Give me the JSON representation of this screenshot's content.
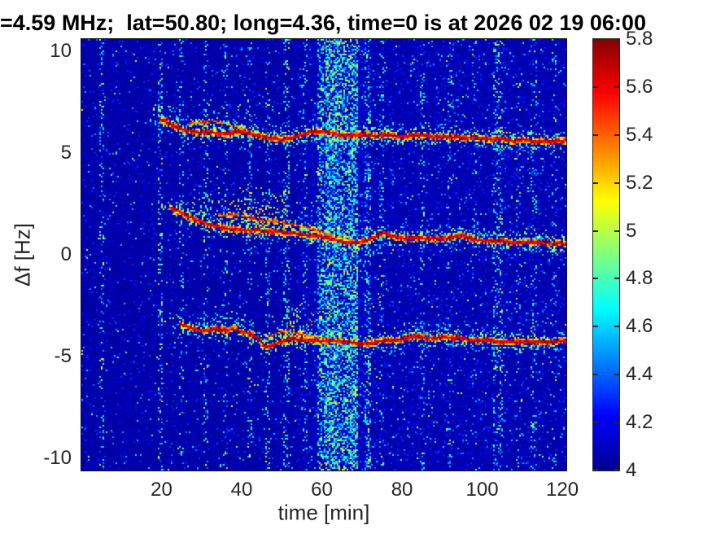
{
  "colors": {
    "background": "#ffffff",
    "title_color": "#000000",
    "axis_text_color": "#262626",
    "axis_line_color": "#111111"
  },
  "chart_data": {
    "type": "heatmap",
    "title": "=4.59 MHz;  lat=50.80; long=4.36, time=0 is at 2026 02 19 06:00",
    "xlabel": "time [min]",
    "ylabel": "Δf [Hz]",
    "xlim": [
      0,
      121
    ],
    "ylim": [
      -10.6,
      10.6
    ],
    "xticks": {
      "values": [
        20,
        40,
        60,
        80,
        100,
        120
      ],
      "labels": [
        "20",
        "40",
        "60",
        "80",
        "100",
        "120"
      ]
    },
    "yticks": {
      "values": [
        10,
        5,
        0,
        -5,
        -10
      ],
      "labels": [
        "10",
        "5",
        "0",
        "-5",
        "-10"
      ]
    },
    "grid": false,
    "legend": null,
    "colorbar": {
      "position": "right",
      "min": 4,
      "max": 5.8,
      "tick_values": [
        5.8,
        5.6,
        5.4,
        5.2,
        5,
        4.8,
        4.6,
        4.4,
        4.2,
        4
      ],
      "tick_labels": [
        "5.8",
        "5.6",
        "5.4",
        "5.2",
        "5",
        "4.8",
        "4.6",
        "4.4",
        "4.2",
        "4"
      ]
    },
    "colormap": {
      "name": "jet",
      "positions": [
        0,
        0.125,
        0.375,
        0.625,
        0.875,
        1
      ],
      "colors": [
        "#000090",
        "#0000ff",
        "#00ffff",
        "#ffff00",
        "#ff0000",
        "#870000"
      ]
    },
    "noise": {
      "seed": 20260219,
      "base": 4.03,
      "boosts": [
        {
          "t0": 54,
          "t1": 121,
          "mult": 1.9
        },
        {
          "t0": 58,
          "t1": 72,
          "mult": 1.5
        }
      ]
    },
    "stripes": [
      {
        "t": 5,
        "w": 1.2,
        "s": 0.22
      },
      {
        "t": 19.5,
        "w": 1.2,
        "s": 0.28
      },
      {
        "t": 25,
        "w": 1.0,
        "s": 0.15
      },
      {
        "t": 31,
        "w": 1.4,
        "s": 0.2
      },
      {
        "t": 36,
        "w": 1.2,
        "s": 0.15
      },
      {
        "t": 42,
        "w": 1.4,
        "s": 0.18
      },
      {
        "t": 46.5,
        "w": 1.4,
        "s": 0.22
      },
      {
        "t": 51,
        "w": 1.6,
        "s": 0.25
      },
      {
        "t": 56,
        "w": 1.2,
        "s": 0.18
      },
      {
        "t": 60,
        "w": 2.2,
        "s": 0.5
      },
      {
        "t": 62.5,
        "w": 3.2,
        "s": 0.85
      },
      {
        "t": 65.5,
        "w": 2.6,
        "s": 0.62
      },
      {
        "t": 68,
        "w": 2.2,
        "s": 0.8
      },
      {
        "t": 71.5,
        "w": 1.6,
        "s": 0.4
      },
      {
        "t": 75,
        "w": 1.2,
        "s": 0.15
      },
      {
        "t": 85,
        "w": 1.4,
        "s": 0.18
      },
      {
        "t": 92,
        "w": 1.2,
        "s": 0.15
      },
      {
        "t": 98,
        "w": 1.0,
        "s": 0.12
      },
      {
        "t": 104,
        "w": 2.4,
        "s": 0.28
      },
      {
        "t": 109,
        "w": 1.2,
        "s": 0.12
      },
      {
        "t": 113,
        "w": 1.6,
        "s": 0.18
      },
      {
        "t": 118,
        "w": 1.0,
        "s": 0.1
      }
    ],
    "traces": [
      {
        "name": "upper-doppler-trace",
        "points": [
          [
            19.5,
            6.68
          ],
          [
            21,
            6.55
          ],
          [
            22.5,
            6.4
          ],
          [
            24,
            6.28
          ],
          [
            26,
            6.12
          ],
          [
            28,
            6.02
          ],
          [
            30,
            5.98
          ],
          [
            32,
            6.05
          ],
          [
            34,
            5.98
          ],
          [
            36,
            5.92
          ],
          [
            38,
            6.0
          ],
          [
            40,
            6.05
          ],
          [
            42,
            5.95
          ],
          [
            44,
            5.85
          ],
          [
            46,
            5.78
          ],
          [
            48,
            5.7
          ],
          [
            50,
            5.65
          ],
          [
            52,
            5.7
          ],
          [
            54,
            5.85
          ],
          [
            56,
            5.98
          ],
          [
            58,
            6.04
          ],
          [
            60,
            6.05
          ],
          [
            62,
            6.0
          ],
          [
            64,
            5.9
          ],
          [
            66,
            5.85
          ],
          [
            68,
            5.88
          ],
          [
            70,
            5.92
          ],
          [
            72,
            5.88
          ],
          [
            74,
            5.84
          ],
          [
            76,
            5.9
          ],
          [
            78,
            5.84
          ],
          [
            80,
            5.78
          ],
          [
            82,
            5.84
          ],
          [
            84,
            5.9
          ],
          [
            86,
            5.84
          ],
          [
            88,
            5.78
          ],
          [
            90,
            5.83
          ],
          [
            92,
            5.76
          ],
          [
            94,
            5.8
          ],
          [
            96,
            5.72
          ],
          [
            98,
            5.77
          ],
          [
            100,
            5.7
          ],
          [
            102,
            5.66
          ],
          [
            104,
            5.72
          ],
          [
            106,
            5.66
          ],
          [
            108,
            5.6
          ],
          [
            110,
            5.67
          ],
          [
            112,
            5.6
          ],
          [
            114,
            5.56
          ],
          [
            116,
            5.6
          ],
          [
            118,
            5.56
          ],
          [
            120,
            5.6
          ],
          [
            121,
            5.62
          ]
        ]
      },
      {
        "name": "middle-doppler-trace",
        "points": [
          [
            22,
            2.35
          ],
          [
            24,
            2.15
          ],
          [
            26,
            1.95
          ],
          [
            28,
            1.76
          ],
          [
            30,
            1.6
          ],
          [
            32,
            1.46
          ],
          [
            34,
            1.38
          ],
          [
            36,
            1.31
          ],
          [
            38,
            1.28
          ],
          [
            40,
            1.22
          ],
          [
            42,
            1.18
          ],
          [
            44,
            1.22
          ],
          [
            46,
            1.16
          ],
          [
            48,
            1.12
          ],
          [
            50,
            1.1
          ],
          [
            52,
            1.07
          ],
          [
            54,
            1.03
          ],
          [
            56,
            0.98
          ],
          [
            58,
            0.93
          ],
          [
            60,
            0.87
          ],
          [
            62,
            0.8
          ],
          [
            64,
            0.72
          ],
          [
            66,
            0.63
          ],
          [
            68,
            0.6
          ],
          [
            70,
            0.66
          ],
          [
            72,
            0.73
          ],
          [
            74,
            0.95
          ],
          [
            75.5,
            1.08
          ],
          [
            77,
            0.93
          ],
          [
            79,
            0.84
          ],
          [
            81,
            0.78
          ],
          [
            83,
            0.8
          ],
          [
            85,
            0.83
          ],
          [
            87,
            0.8
          ],
          [
            89,
            0.78
          ],
          [
            91,
            0.82
          ],
          [
            93,
            0.9
          ],
          [
            95,
            0.95
          ],
          [
            97,
            0.8
          ],
          [
            99,
            0.72
          ],
          [
            101,
            0.68
          ],
          [
            103,
            0.66
          ],
          [
            105,
            0.65
          ],
          [
            107,
            0.62
          ],
          [
            109,
            0.6
          ],
          [
            111,
            0.63
          ],
          [
            113,
            0.62
          ],
          [
            115,
            0.58
          ],
          [
            117,
            0.55
          ],
          [
            119,
            0.56
          ],
          [
            121,
            0.55
          ]
        ]
      },
      {
        "name": "lower-doppler-trace",
        "points": [
          [
            24.5,
            -3.4
          ],
          [
            26,
            -3.5
          ],
          [
            28,
            -3.62
          ],
          [
            30,
            -3.74
          ],
          [
            32,
            -3.7
          ],
          [
            34,
            -3.62
          ],
          [
            36,
            -3.72
          ],
          [
            38,
            -3.68
          ],
          [
            40,
            -3.76
          ],
          [
            42,
            -3.86
          ],
          [
            44,
            -4.12
          ],
          [
            45.5,
            -4.45
          ],
          [
            47,
            -4.55
          ],
          [
            48.5,
            -4.4
          ],
          [
            50,
            -4.26
          ],
          [
            52,
            -4.12
          ],
          [
            54,
            -4.16
          ],
          [
            56,
            -4.2
          ],
          [
            58,
            -4.22
          ],
          [
            60,
            -4.25
          ],
          [
            62,
            -4.2
          ],
          [
            64,
            -4.22
          ],
          [
            66,
            -4.28
          ],
          [
            68,
            -4.32
          ],
          [
            70,
            -4.38
          ],
          [
            72,
            -4.35
          ],
          [
            74,
            -4.28
          ],
          [
            76,
            -4.2
          ],
          [
            78,
            -4.22
          ],
          [
            80,
            -4.15
          ],
          [
            82,
            -4.05
          ],
          [
            84,
            -4.0
          ],
          [
            86,
            -4.08
          ],
          [
            88,
            -4.12
          ],
          [
            90,
            -4.05
          ],
          [
            92,
            -4.1
          ],
          [
            94,
            -4.06
          ],
          [
            96,
            -4.15
          ],
          [
            98,
            -4.2
          ],
          [
            100,
            -4.22
          ],
          [
            102,
            -4.18
          ],
          [
            104,
            -4.25
          ],
          [
            106,
            -4.3
          ],
          [
            108,
            -4.26
          ],
          [
            110,
            -4.3
          ],
          [
            112,
            -4.28
          ],
          [
            114,
            -4.32
          ],
          [
            116,
            -4.28
          ],
          [
            118,
            -4.3
          ],
          [
            120,
            -4.22
          ],
          [
            121,
            -4.25
          ]
        ]
      }
    ],
    "strands": [
      {
        "name": "upper-trace-split",
        "points": [
          [
            27,
            6.45
          ],
          [
            30,
            6.5
          ],
          [
            33,
            6.55
          ],
          [
            36,
            6.4
          ],
          [
            39,
            6.25
          ],
          [
            42,
            6.1
          ]
        ]
      },
      {
        "name": "middle-trace-split",
        "points": [
          [
            34,
            1.95
          ],
          [
            38,
            1.98
          ],
          [
            42,
            1.82
          ],
          [
            46,
            1.7
          ],
          [
            50,
            1.58
          ],
          [
            54,
            1.44
          ],
          [
            58,
            1.25
          ],
          [
            62,
            1.0
          ]
        ]
      },
      {
        "name": "lower-trace-split",
        "points": [
          [
            46,
            -4.15
          ],
          [
            48,
            -3.95
          ],
          [
            50,
            -3.8
          ],
          [
            52,
            -3.76
          ],
          [
            54,
            -3.86
          ],
          [
            56,
            -3.95
          ],
          [
            58,
            -4.02
          ],
          [
            60,
            -4.08
          ],
          [
            62,
            -4.14
          ]
        ]
      }
    ],
    "clouds": [
      {
        "trace": 0,
        "t0": 17,
        "t1": 20,
        "lo": -0.3,
        "hi": 0.7,
        "density": 0.25,
        "vmin": 4.5,
        "vmax": 5.2
      },
      {
        "trace": 0,
        "t0": 20,
        "t1": 30,
        "lo": 0.05,
        "hi": 0.9,
        "density": 0.18,
        "vmin": 4.5,
        "vmax": 5.1
      },
      {
        "trace": 0,
        "t0": 26,
        "t1": 58,
        "lo": 0.05,
        "hi": 1.6,
        "density": 0.09,
        "vmin": 4.45,
        "vmax": 5.0
      },
      {
        "trace": 1,
        "t0": 19,
        "t1": 22.5,
        "lo": -0.2,
        "hi": 0.6,
        "density": 0.18,
        "vmin": 4.5,
        "vmax": 5.1
      },
      {
        "trace": 1,
        "t0": 24,
        "t1": 34,
        "lo": 0.05,
        "hi": 1.5,
        "density": 0.16,
        "vmin": 4.5,
        "vmax": 5.05
      },
      {
        "trace": 1,
        "t0": 30,
        "t1": 58,
        "lo": 0.05,
        "hi": 2.1,
        "density": 0.18,
        "vmin": 4.55,
        "vmax": 5.3
      },
      {
        "trace": 1,
        "t0": 36,
        "t1": 52,
        "lo": 0.05,
        "hi": 1.2,
        "density": 0.22,
        "vmin": 4.85,
        "vmax": 5.45
      },
      {
        "trace": 1,
        "t0": 58,
        "t1": 80,
        "lo": -1.3,
        "hi": -0.12,
        "density": 0.07,
        "vmin": 4.45,
        "vmax": 4.9
      },
      {
        "trace": 1,
        "t0": 80,
        "t1": 121,
        "lo": 0.05,
        "hi": 0.5,
        "density": 0.13,
        "vmin": 4.55,
        "vmax": 5.05
      },
      {
        "trace": 2,
        "t0": 21,
        "t1": 25,
        "lo": -0.2,
        "hi": 0.5,
        "density": 0.15,
        "vmin": 4.5,
        "vmax": 5.0
      },
      {
        "trace": 2,
        "t0": 28,
        "t1": 46,
        "lo": 0.05,
        "hi": 0.9,
        "density": 0.12,
        "vmin": 4.5,
        "vmax": 5.0
      },
      {
        "trace": 2,
        "t0": 46,
        "t1": 60,
        "lo": 0.05,
        "hi": 1.6,
        "density": 0.2,
        "vmin": 4.7,
        "vmax": 5.4
      },
      {
        "trace": 2,
        "t0": 78,
        "t1": 90,
        "lo": 0.05,
        "hi": 0.8,
        "density": 0.12,
        "vmin": 4.5,
        "vmax": 5.05
      },
      {
        "trace": 2,
        "t0": 60,
        "t1": 75,
        "lo": -0.8,
        "hi": -0.1,
        "density": 0.06,
        "vmin": 4.45,
        "vmax": 4.85
      }
    ]
  }
}
